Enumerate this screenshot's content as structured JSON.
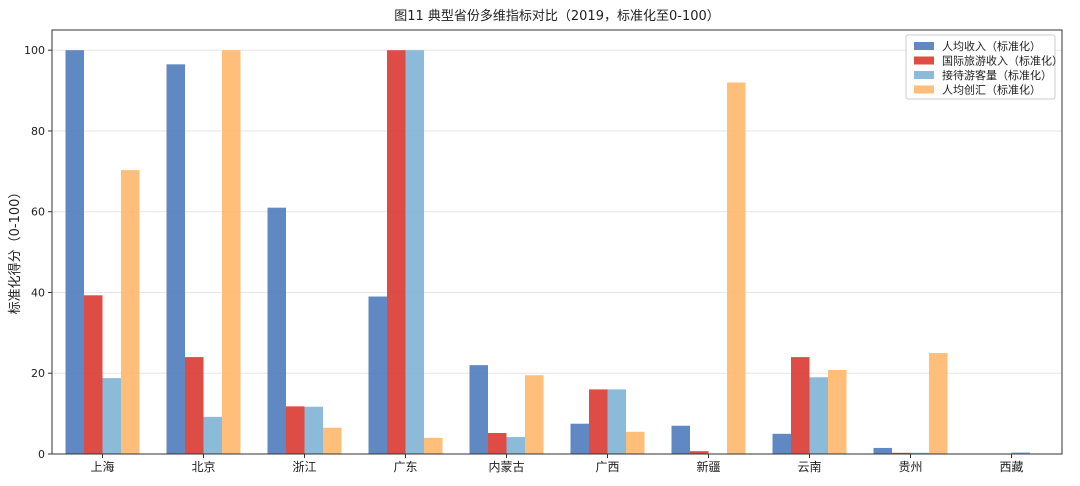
{
  "chart_data": {
    "type": "bar",
    "title": "图11  典型省份多维指标对比（2019，标准化至0-100）",
    "xlabel": "",
    "ylabel": "标准化得分（0-100）",
    "ylim": [
      0,
      105
    ],
    "yticks": [
      0,
      20,
      40,
      60,
      80,
      100
    ],
    "grid": "horizontal",
    "legend_position": "top-right",
    "categories": [
      "上海",
      "北京",
      "浙江",
      "广东",
      "内蒙古",
      "广西",
      "新疆",
      "云南",
      "贵州",
      "西藏"
    ],
    "series": [
      {
        "name": "人均收入（标准化）",
        "color": "#4f7bbb",
        "values": [
          100,
          96.5,
          61,
          39,
          22,
          7.5,
          7,
          5,
          1.5,
          0
        ]
      },
      {
        "name": "国际旅游收入（标准化）",
        "color": "#d93a32",
        "values": [
          39.3,
          24,
          11.8,
          100,
          5.2,
          16,
          0.7,
          24,
          0.3,
          0
        ]
      },
      {
        "name": "接待游客量（标准化）",
        "color": "#7fb2d5",
        "values": [
          18.8,
          9.2,
          11.7,
          100,
          4.2,
          16,
          0,
          19,
          0.3,
          0.4
        ]
      },
      {
        "name": "人均创汇（标准化）",
        "color": "#ffb76b",
        "values": [
          70.3,
          100,
          6.5,
          4,
          19.5,
          5.5,
          92,
          20.8,
          25,
          0
        ]
      }
    ]
  }
}
